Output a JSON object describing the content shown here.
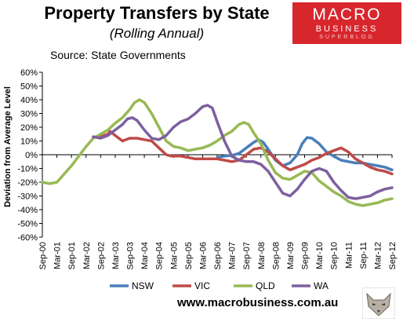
{
  "header": {
    "title": "Property Transfers by State",
    "subtitle": "(Rolling Annual)",
    "source": "Source: State Governments"
  },
  "logo": {
    "line1": "MACRO",
    "line2": "BUSINESS",
    "line3": "SUPERBLOG"
  },
  "footer": {
    "url": "www.macrobusiness.com.au"
  },
  "colors": {
    "NSW": "#4a7ebb",
    "VIC": "#be4b48",
    "QLD": "#98b954",
    "WA": "#7d60a0",
    "logo_bg": "#d8262d"
  },
  "chart_data": {
    "type": "line",
    "ylabel": "Deviation from Average Level",
    "ylim": [
      -60,
      60
    ],
    "yticks": [
      -60,
      -50,
      -40,
      -30,
      -20,
      -10,
      0,
      10,
      20,
      30,
      40,
      50,
      60
    ],
    "ytick_labels": [
      "-60%",
      "-50%",
      "-40%",
      "-30%",
      "-20%",
      "-10%",
      "0%",
      "10%",
      "20%",
      "30%",
      "40%",
      "50%",
      "60%"
    ],
    "x_start": "Sep-00",
    "x_end": "Sep-12",
    "xtick_labels": [
      "Sep-00",
      "Mar-01",
      "Sep-01",
      "Mar-02",
      "Sep-02",
      "Mar-03",
      "Sep-03",
      "Mar-04",
      "Sep-04",
      "Mar-05",
      "Sep-05",
      "Mar-06",
      "Sep-06",
      "Mar-07",
      "Sep-07",
      "Mar-08",
      "Sep-08",
      "Mar-09",
      "Sep-09",
      "Mar-10",
      "Sep-10",
      "Mar-11",
      "Sep-11",
      "Mar-12",
      "Sep-12"
    ],
    "legend_position": "bottom",
    "series": [
      {
        "name": "NSW",
        "points": [
          [
            "Sep-06",
            -2
          ],
          [
            "Dec-06",
            -1
          ],
          [
            "Mar-07",
            -0.5
          ],
          [
            "Jun-07",
            1
          ],
          [
            "Sep-07",
            5
          ],
          [
            "Dec-07",
            9
          ],
          [
            "Feb-08",
            11
          ],
          [
            "Apr-08",
            9
          ],
          [
            "Jun-08",
            4
          ],
          [
            "Sep-08",
            -4
          ],
          [
            "Dec-08",
            -8
          ],
          [
            "Mar-09",
            -6
          ],
          [
            "Jun-09",
            0
          ],
          [
            "Aug-09",
            8
          ],
          [
            "Oct-09",
            12.5
          ],
          [
            "Dec-09",
            12
          ],
          [
            "Mar-10",
            8
          ],
          [
            "Jun-10",
            2
          ],
          [
            "Sep-10",
            -1
          ],
          [
            "Dec-10",
            -4
          ],
          [
            "Mar-11",
            -5
          ],
          [
            "Jun-11",
            -6
          ],
          [
            "Sep-11",
            -6
          ],
          [
            "Dec-11",
            -7
          ],
          [
            "Mar-12",
            -8
          ],
          [
            "Jun-12",
            -9
          ],
          [
            "Sep-12",
            -11
          ]
        ]
      },
      {
        "name": "VIC",
        "points": [
          [
            "Jun-02",
            13
          ],
          [
            "Sep-02",
            13
          ],
          [
            "Dec-02",
            15
          ],
          [
            "Jan-03",
            17
          ],
          [
            "Mar-03",
            14
          ],
          [
            "Jun-03",
            10
          ],
          [
            "Sep-03",
            12
          ],
          [
            "Dec-03",
            12
          ],
          [
            "Mar-04",
            11
          ],
          [
            "Jun-04",
            10
          ],
          [
            "Sep-04",
            5
          ],
          [
            "Dec-04",
            0
          ],
          [
            "Feb-05",
            -1
          ],
          [
            "Jun-05",
            -1
          ],
          [
            "Sep-05",
            -2
          ],
          [
            "Dec-05",
            -3
          ],
          [
            "Mar-06",
            -3
          ],
          [
            "Jun-06",
            -3
          ],
          [
            "Sep-06",
            -3
          ],
          [
            "Dec-06",
            -4
          ],
          [
            "Mar-07",
            -5
          ],
          [
            "Jun-07",
            -4
          ],
          [
            "Sep-07",
            0
          ],
          [
            "Dec-07",
            4
          ],
          [
            "Mar-08",
            5
          ],
          [
            "Jun-08",
            2
          ],
          [
            "Sep-08",
            -3
          ],
          [
            "Dec-08",
            -8
          ],
          [
            "Mar-09",
            -11
          ],
          [
            "Jun-09",
            -9
          ],
          [
            "Sep-09",
            -7
          ],
          [
            "Dec-09",
            -4
          ],
          [
            "Mar-10",
            -2
          ],
          [
            "Jun-10",
            1
          ],
          [
            "Sep-10",
            3
          ],
          [
            "Dec-10",
            5
          ],
          [
            "Mar-11",
            2
          ],
          [
            "Jun-11",
            -3
          ],
          [
            "Sep-11",
            -6
          ],
          [
            "Dec-11",
            -9
          ],
          [
            "Mar-12",
            -11
          ],
          [
            "Jun-12",
            -12
          ],
          [
            "Sep-12",
            -14
          ]
        ]
      },
      {
        "name": "QLD",
        "points": [
          [
            "Sep-00",
            -20
          ],
          [
            "Dec-00",
            -21
          ],
          [
            "Mar-01",
            -20
          ],
          [
            "Jun-01",
            -14
          ],
          [
            "Sep-01",
            -8
          ],
          [
            "Dec-01",
            -1
          ],
          [
            "Mar-02",
            6
          ],
          [
            "Jun-02",
            12
          ],
          [
            "Sep-02",
            15
          ],
          [
            "Dec-02",
            18
          ],
          [
            "Mar-03",
            23
          ],
          [
            "Jun-03",
            27
          ],
          [
            "Sep-03",
            33
          ],
          [
            "Nov-03",
            38
          ],
          [
            "Jan-04",
            40
          ],
          [
            "Mar-04",
            38
          ],
          [
            "Jun-04",
            30
          ],
          [
            "Sep-04",
            20
          ],
          [
            "Dec-04",
            10
          ],
          [
            "Mar-05",
            6
          ],
          [
            "Jun-05",
            5
          ],
          [
            "Sep-05",
            3
          ],
          [
            "Dec-05",
            4
          ],
          [
            "Mar-06",
            5
          ],
          [
            "Jun-06",
            7
          ],
          [
            "Sep-06",
            10
          ],
          [
            "Dec-06",
            14
          ],
          [
            "Mar-07",
            17
          ],
          [
            "Jun-07",
            22
          ],
          [
            "Aug-07",
            23.5
          ],
          [
            "Oct-07",
            22
          ],
          [
            "Dec-07",
            16
          ],
          [
            "Mar-08",
            8
          ],
          [
            "Jun-08",
            -4
          ],
          [
            "Sep-08",
            -13
          ],
          [
            "Dec-08",
            -17
          ],
          [
            "Mar-09",
            -18
          ],
          [
            "Jun-09",
            -15
          ],
          [
            "Sep-09",
            -12
          ],
          [
            "Dec-09",
            -13
          ],
          [
            "Mar-10",
            -19
          ],
          [
            "Jun-10",
            -23
          ],
          [
            "Sep-10",
            -27
          ],
          [
            "Dec-10",
            -30
          ],
          [
            "Mar-11",
            -34
          ],
          [
            "Jun-11",
            -36
          ],
          [
            "Sep-11",
            -37
          ],
          [
            "Dec-11",
            -36
          ],
          [
            "Mar-12",
            -35
          ],
          [
            "Jun-12",
            -33
          ],
          [
            "Sep-12",
            -32
          ]
        ]
      },
      {
        "name": "WA",
        "points": [
          [
            "Jun-02",
            13
          ],
          [
            "Sep-02",
            12
          ],
          [
            "Dec-02",
            14
          ],
          [
            "Mar-03",
            18
          ],
          [
            "Jun-03",
            22
          ],
          [
            "Aug-03",
            26
          ],
          [
            "Oct-03",
            27
          ],
          [
            "Dec-03",
            25
          ],
          [
            "Mar-04",
            18
          ],
          [
            "Jun-04",
            12
          ],
          [
            "Sep-04",
            11
          ],
          [
            "Dec-04",
            14
          ],
          [
            "Mar-05",
            20
          ],
          [
            "Jun-05",
            24
          ],
          [
            "Sep-05",
            26
          ],
          [
            "Dec-05",
            30
          ],
          [
            "Mar-06",
            35
          ],
          [
            "May-06",
            36
          ],
          [
            "Jul-06",
            34
          ],
          [
            "Sep-06",
            24
          ],
          [
            "Dec-06",
            10
          ],
          [
            "Mar-07",
            -1
          ],
          [
            "Jun-07",
            -4
          ],
          [
            "Sep-07",
            -5
          ],
          [
            "Dec-07",
            -5
          ],
          [
            "Mar-08",
            -7
          ],
          [
            "Jun-08",
            -12
          ],
          [
            "Sep-08",
            -20
          ],
          [
            "Dec-08",
            -28
          ],
          [
            "Mar-09",
            -30
          ],
          [
            "Jun-09",
            -25
          ],
          [
            "Sep-09",
            -18
          ],
          [
            "Dec-09",
            -12
          ],
          [
            "Mar-10",
            -10
          ],
          [
            "Jun-10",
            -12
          ],
          [
            "Sep-10",
            -20
          ],
          [
            "Dec-10",
            -26
          ],
          [
            "Mar-11",
            -31
          ],
          [
            "Jun-11",
            -32
          ],
          [
            "Sep-11",
            -31
          ],
          [
            "Dec-11",
            -30
          ],
          [
            "Mar-12",
            -27
          ],
          [
            "Jun-12",
            -25
          ],
          [
            "Sep-12",
            -24
          ]
        ]
      }
    ]
  }
}
